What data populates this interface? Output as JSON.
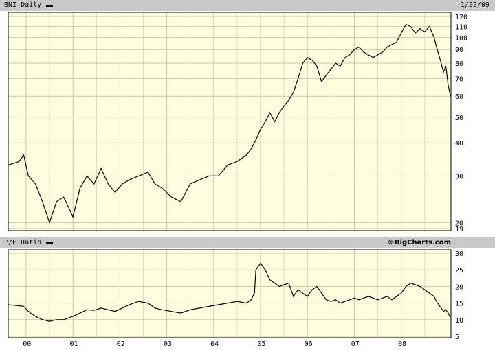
{
  "price_panel": {
    "title": "BNI Daily",
    "date": "1/22/09"
  },
  "pe_panel": {
    "title": "P/E Ratio",
    "credit": "©BigCharts.com"
  },
  "colors": {
    "plot_bg": "#ffffe0",
    "grid": "#c8c8a8",
    "line": "#000000",
    "header_bg": "#c9c9c9"
  },
  "chart_data": [
    {
      "type": "line",
      "scale": "log",
      "series": [
        {
          "name": "BNI Daily",
          "x": [
            1999.62,
            1999.85,
            1999.95,
            2000.05,
            2000.2,
            2000.35,
            2000.5,
            2000.65,
            2000.8,
            2000.9,
            2001.0,
            2001.15,
            2001.3,
            2001.45,
            2001.6,
            2001.75,
            2001.9,
            2002.05,
            2002.2,
            2002.4,
            2002.6,
            2002.75,
            2002.9,
            2003.1,
            2003.3,
            2003.5,
            2003.7,
            2003.9,
            2004.1,
            2004.3,
            2004.5,
            2004.7,
            2004.8,
            2004.9,
            2005.0,
            2005.1,
            2005.2,
            2005.3,
            2005.4,
            2005.5,
            2005.6,
            2005.7,
            2005.8,
            2005.9,
            2006.0,
            2006.1,
            2006.2,
            2006.3,
            2006.4,
            2006.5,
            2006.6,
            2006.7,
            2006.8,
            2006.9,
            2007.0,
            2007.1,
            2007.2,
            2007.3,
            2007.4,
            2007.5,
            2007.6,
            2007.7,
            2007.8,
            2007.9,
            2008.0,
            2008.1,
            2008.2,
            2008.3,
            2008.4,
            2008.5,
            2008.6,
            2008.7,
            2008.75,
            2008.8,
            2008.85,
            2008.9,
            2008.95,
            2009.0,
            2009.05
          ],
          "values": [
            33,
            34,
            36,
            30,
            28,
            24,
            20,
            24,
            25,
            23,
            21,
            27,
            30,
            28,
            32,
            28,
            26,
            28,
            29,
            30,
            31,
            28,
            27,
            25,
            24,
            28,
            29,
            30,
            30,
            33,
            34,
            36,
            38,
            41,
            45,
            48,
            52,
            48,
            52,
            55,
            58,
            62,
            70,
            80,
            84,
            82,
            78,
            68,
            72,
            76,
            80,
            78,
            84,
            86,
            90,
            92,
            88,
            86,
            84,
            86,
            88,
            92,
            94,
            96,
            104,
            112,
            110,
            104,
            108,
            105,
            110,
            100,
            92,
            86,
            80,
            74,
            78,
            66,
            60
          ]
        }
      ],
      "ylim": [
        19,
        120
      ],
      "ytick_labels": [
        "19",
        "20",
        "30",
        "40",
        "50",
        "60",
        "70",
        "80",
        "90",
        "100",
        "110",
        "120"
      ],
      "xtick_labels": [
        "00",
        "01",
        "02",
        "03",
        "04",
        "05",
        "06",
        "07",
        "08"
      ],
      "grid": true
    },
    {
      "type": "line",
      "series": [
        {
          "name": "P/E Ratio",
          "x": [
            1999.62,
            1999.85,
            1999.95,
            2000.05,
            2000.2,
            2000.35,
            2000.5,
            2000.65,
            2000.8,
            2000.9,
            2001.0,
            2001.15,
            2001.3,
            2001.45,
            2001.6,
            2001.75,
            2001.9,
            2002.05,
            2002.2,
            2002.4,
            2002.6,
            2002.75,
            2002.9,
            2003.1,
            2003.3,
            2003.5,
            2003.7,
            2003.9,
            2004.1,
            2004.3,
            2004.5,
            2004.7,
            2004.8,
            2004.87,
            2004.9,
            2005.0,
            2005.1,
            2005.2,
            2005.3,
            2005.4,
            2005.5,
            2005.6,
            2005.7,
            2005.8,
            2005.9,
            2006.0,
            2006.1,
            2006.2,
            2006.3,
            2006.4,
            2006.5,
            2006.6,
            2006.7,
            2006.8,
            2006.9,
            2007.0,
            2007.1,
            2007.2,
            2007.3,
            2007.4,
            2007.5,
            2007.6,
            2007.7,
            2007.8,
            2007.9,
            2008.0,
            2008.1,
            2008.2,
            2008.3,
            2008.4,
            2008.5,
            2008.6,
            2008.7,
            2008.75,
            2008.8,
            2008.85,
            2008.9,
            2008.95,
            2009.0,
            2009.05
          ],
          "values": [
            14.5,
            14.2,
            14,
            12.5,
            11,
            10,
            9.5,
            10,
            10,
            10.5,
            11,
            12,
            13,
            12.8,
            13.5,
            13,
            12.5,
            13.5,
            14.5,
            15.5,
            15,
            13.5,
            13,
            12.5,
            12,
            13,
            13.5,
            14,
            14.5,
            15,
            15.5,
            15,
            16,
            18,
            25,
            27,
            25,
            22,
            21,
            20,
            20.5,
            21,
            17,
            19,
            18,
            17,
            19,
            20,
            18,
            16,
            15.5,
            16,
            15,
            15.5,
            16,
            16.5,
            16,
            16.5,
            17,
            16.5,
            16,
            16.5,
            17,
            16,
            17,
            18,
            20,
            21,
            20.5,
            20,
            19,
            18,
            17,
            15.5,
            14.5,
            13.5,
            12.5,
            13,
            12,
            10.5
          ]
        }
      ],
      "ylim": [
        5,
        30
      ],
      "ytick_labels": [
        "5",
        "10",
        "15",
        "20",
        "25",
        "30"
      ],
      "xtick_labels": [
        "00",
        "01",
        "02",
        "03",
        "04",
        "05",
        "06",
        "07",
        "08"
      ],
      "grid": true
    }
  ]
}
